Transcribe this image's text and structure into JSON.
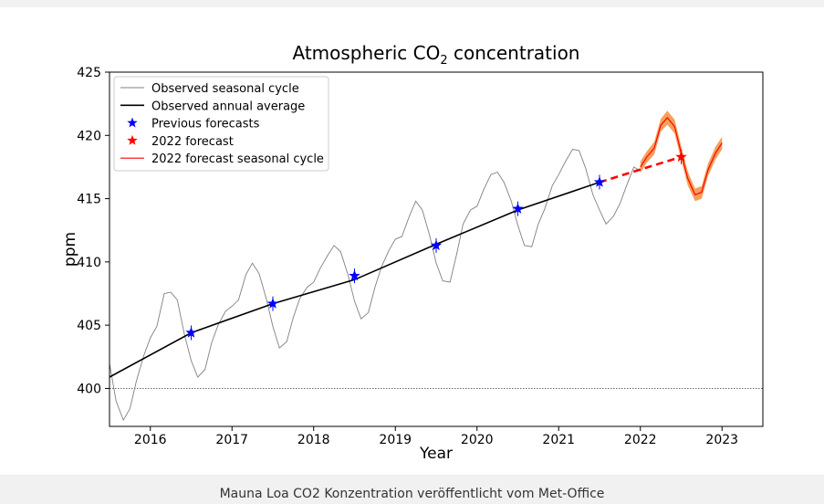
{
  "chart_data": {
    "type": "line",
    "title": "Atmospheric CO",
    "title_subscript": "2",
    "title_suffix": " concentration",
    "xlabel": "Year",
    "ylabel": "ppm",
    "xlim": [
      2015.5,
      2023.5
    ],
    "ylim": [
      397,
      425
    ],
    "xticks": [
      2016,
      2017,
      2018,
      2019,
      2020,
      2021,
      2022,
      2023
    ],
    "yticks": [
      400,
      405,
      410,
      415,
      420,
      425
    ],
    "legend_position": "top-left",
    "reference_line": 400,
    "colors": {
      "seasonal": "#808080",
      "annual": "#000000",
      "previous_forecast": "#0000ff",
      "forecast_2022": "#ff0000",
      "forecast_band": "#f5a05a",
      "forecast_line": "#ff0000"
    },
    "series": [
      {
        "name": "Observed seasonal cycle",
        "x": [
          2015.5,
          2015.58,
          2015.67,
          2015.75,
          2015.83,
          2015.92,
          2016.0,
          2016.08,
          2016.17,
          2016.25,
          2016.33,
          2016.42,
          2016.5,
          2016.58,
          2016.67,
          2016.75,
          2016.83,
          2016.92,
          2017.0,
          2017.08,
          2017.17,
          2017.25,
          2017.33,
          2017.42,
          2017.5,
          2017.58,
          2017.67,
          2017.75,
          2017.83,
          2017.92,
          2018.0,
          2018.08,
          2018.17,
          2018.25,
          2018.33,
          2018.42,
          2018.5,
          2018.58,
          2018.67,
          2018.75,
          2018.83,
          2018.92,
          2019.0,
          2019.08,
          2019.17,
          2019.25,
          2019.33,
          2019.42,
          2019.5,
          2019.58,
          2019.67,
          2019.75,
          2019.83,
          2019.92,
          2020.0,
          2020.08,
          2020.17,
          2020.25,
          2020.33,
          2020.42,
          2020.5,
          2020.58,
          2020.67,
          2020.75,
          2020.83,
          2020.92,
          2021.0,
          2021.08,
          2021.17,
          2021.25,
          2021.33,
          2021.42,
          2021.5,
          2021.58,
          2021.67,
          2021.75,
          2021.83,
          2021.92,
          2022.0
        ],
        "y": [
          402.0,
          399.0,
          397.5,
          398.4,
          400.6,
          402.6,
          404.0,
          404.9,
          407.5,
          407.6,
          407.0,
          404.2,
          402.2,
          400.9,
          401.5,
          403.6,
          405.0,
          406.1,
          406.5,
          407.0,
          409.0,
          409.9,
          409.1,
          407.1,
          404.9,
          403.2,
          403.7,
          405.6,
          407.1,
          408.0,
          408.4,
          409.5,
          410.5,
          411.3,
          410.8,
          409.0,
          406.9,
          405.5,
          406.0,
          408.0,
          409.6,
          410.9,
          411.8,
          412.0,
          413.6,
          414.8,
          414.1,
          412.1,
          409.9,
          408.5,
          408.4,
          410.6,
          413.0,
          414.1,
          414.4,
          415.7,
          416.9,
          417.1,
          416.3,
          414.8,
          412.9,
          411.3,
          411.2,
          413.0,
          414.2,
          416.0,
          416.9,
          417.9,
          418.9,
          418.8,
          417.4,
          415.3,
          414.1,
          413.0,
          413.6,
          414.6,
          416.0,
          417.5,
          417.2
        ]
      },
      {
        "name": "Observed annual average",
        "x": [
          2015.5,
          2016.5,
          2017.5,
          2018.5,
          2019.5,
          2020.5,
          2021.5
        ],
        "y": [
          400.9,
          404.4,
          406.7,
          408.6,
          411.4,
          414.1,
          416.3
        ]
      },
      {
        "name": "Previous forecasts",
        "x": [
          2016.5,
          2017.5,
          2018.5,
          2019.5,
          2020.5,
          2021.5
        ],
        "y": [
          404.4,
          406.7,
          408.9,
          411.3,
          414.2,
          416.3
        ]
      },
      {
        "name": "2022 forecast",
        "x": [
          2022.5
        ],
        "y": [
          418.3
        ]
      },
      {
        "name": "2022 forecast seasonal cycle",
        "x": [
          2022.0,
          2022.08,
          2022.17,
          2022.25,
          2022.33,
          2022.42,
          2022.5,
          2022.58,
          2022.67,
          2022.75,
          2022.83,
          2022.92,
          2023.0
        ],
        "y": [
          417.5,
          418.3,
          419.0,
          420.8,
          421.4,
          420.7,
          418.6,
          416.6,
          415.3,
          415.5,
          417.3,
          418.6,
          419.4
        ],
        "band": [
          0.45,
          0.45,
          0.5,
          0.5,
          0.55,
          0.55,
          0.55,
          0.55,
          0.5,
          0.5,
          0.5,
          0.5,
          0.5
        ]
      }
    ],
    "forecast_link": {
      "x": [
        2021.5,
        2022.5
      ],
      "y": [
        416.3,
        418.3
      ]
    }
  },
  "caption": "Mauna Loa CO2 Konzentration veröffentlicht vom Met-Office"
}
